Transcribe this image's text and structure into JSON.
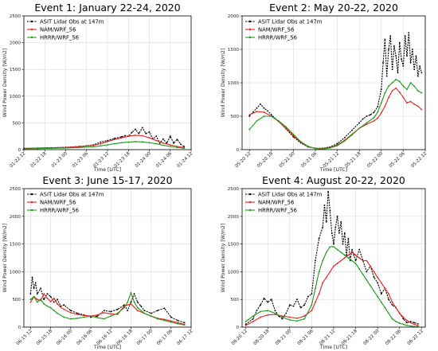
{
  "figure": {
    "background": "#ffffff"
  },
  "chart_data": [
    {
      "type": "line",
      "title": "Event 1: January 22-24, 2020",
      "xlabel": "Time [UTC]",
      "ylabel": "Wind Power Density [W/m2]",
      "ylim": [
        0,
        2500
      ],
      "yticks": [
        0,
        500,
        1000,
        1500,
        2000,
        2500
      ],
      "xlim": [
        0,
        48
      ],
      "xticks": [
        0,
        6,
        12,
        18,
        24,
        30,
        36,
        42,
        48
      ],
      "xtick_labels": [
        "01-22 12",
        "01-22 18",
        "01-23 00",
        "01-23 06",
        "01-23 12",
        "01-23 18",
        "01-24 00",
        "01-24 06",
        "01-24 12"
      ],
      "grid": true,
      "legend": "top-left",
      "series": [
        {
          "name": "ASIT Lidar Obs at 147m",
          "color": "#000000",
          "marker": "dot",
          "x": [
            0,
            4,
            8,
            12,
            16,
            20,
            22,
            24,
            26,
            28,
            29,
            30,
            31,
            32,
            33,
            34,
            35,
            36,
            37,
            38,
            39,
            40,
            41,
            42,
            43,
            44,
            45,
            46
          ],
          "y": [
            20,
            30,
            35,
            45,
            60,
            90,
            140,
            170,
            210,
            240,
            260,
            250,
            320,
            380,
            300,
            410,
            300,
            330,
            200,
            250,
            120,
            200,
            120,
            250,
            120,
            190,
            100,
            60
          ]
        },
        {
          "name": "NAM/WRF_56",
          "color": "#e8221e",
          "marker": "dot",
          "x": [
            0,
            4,
            8,
            12,
            16,
            20,
            22,
            24,
            26,
            28,
            30,
            32,
            34,
            36,
            38,
            40,
            42,
            44,
            46
          ],
          "y": [
            25,
            30,
            35,
            40,
            55,
            80,
            110,
            150,
            190,
            220,
            250,
            270,
            260,
            220,
            170,
            120,
            90,
            60,
            40
          ]
        },
        {
          "name": "HRRR/WRF_56",
          "color": "#1a9a1a",
          "marker": "dot",
          "x": [
            0,
            4,
            8,
            12,
            16,
            20,
            22,
            24,
            26,
            28,
            30,
            32,
            34,
            36,
            38,
            40,
            42,
            44,
            46
          ],
          "y": [
            15,
            20,
            25,
            30,
            40,
            55,
            70,
            90,
            110,
            130,
            140,
            150,
            145,
            130,
            110,
            80,
            60,
            40,
            25
          ]
        }
      ]
    },
    {
      "type": "line",
      "title": "Event 2: May 20-22, 2020",
      "xlabel": "Time [UTC]",
      "ylabel": "Wind Power Density [W/m2]",
      "ylim": [
        0,
        2000
      ],
      "yticks": [
        0,
        500,
        1000,
        1500,
        2000
      ],
      "xlim": [
        -2,
        48
      ],
      "xticks": [
        0,
        6,
        12,
        18,
        24,
        30,
        36,
        42,
        48
      ],
      "xtick_labels": [
        "05-20 12",
        "05-20 18",
        "05-21 00",
        "05-21 06",
        "05-21 12",
        "05-21 18",
        "05-22 00",
        "05-22 06",
        "05-22 12"
      ],
      "grid": true,
      "legend": "top-left",
      "series": [
        {
          "name": "ASIT Lidar Obs at 147m",
          "color": "#000000",
          "marker": "dot",
          "x": [
            0,
            1,
            2,
            3,
            4,
            5,
            6,
            8,
            10,
            12,
            14,
            16,
            18,
            20,
            22,
            24,
            26,
            28,
            30,
            31,
            32,
            33,
            34,
            35,
            36,
            36.5,
            37,
            37.5,
            38,
            38.5,
            39,
            39.5,
            40,
            40.5,
            41,
            41.5,
            42,
            42.5,
            43,
            43.5,
            44,
            44.5,
            45,
            45.5,
            46,
            46.5,
            47
          ],
          "y": [
            500,
            560,
            620,
            680,
            620,
            580,
            520,
            420,
            310,
            190,
            100,
            40,
            20,
            20,
            40,
            90,
            180,
            290,
            400,
            460,
            500,
            520,
            560,
            640,
            900,
            1300,
            1650,
            1100,
            1500,
            1700,
            1200,
            1550,
            1400,
            1150,
            1600,
            1350,
            1250,
            1700,
            1400,
            1750,
            1300,
            1500,
            1200,
            1400,
            1100,
            1250,
            1150
          ]
        },
        {
          "name": "NAM/WRF_56",
          "color": "#e8221e",
          "marker": "dot",
          "x": [
            0,
            2,
            4,
            6,
            8,
            10,
            12,
            14,
            16,
            18,
            20,
            22,
            24,
            26,
            28,
            30,
            32,
            34,
            35,
            36,
            37,
            38,
            39,
            40,
            41,
            42,
            43,
            44,
            45,
            46,
            47
          ],
          "y": [
            520,
            570,
            560,
            500,
            420,
            320,
            210,
            110,
            45,
            20,
            15,
            30,
            70,
            140,
            230,
            320,
            380,
            430,
            470,
            550,
            650,
            780,
            880,
            920,
            860,
            780,
            700,
            720,
            680,
            650,
            600
          ]
        },
        {
          "name": "HRRR/WRF_56",
          "color": "#1a9a1a",
          "marker": "dot",
          "x": [
            0,
            2,
            4,
            6,
            8,
            10,
            12,
            14,
            16,
            18,
            20,
            22,
            24,
            26,
            28,
            30,
            32,
            34,
            35,
            36,
            37,
            38,
            39,
            40,
            41,
            42,
            43,
            44,
            45,
            46,
            47
          ],
          "y": [
            300,
            430,
            500,
            500,
            430,
            340,
            230,
            120,
            50,
            15,
            10,
            25,
            60,
            130,
            220,
            320,
            400,
            480,
            560,
            700,
            850,
            950,
            1000,
            1050,
            1020,
            950,
            900,
            1000,
            950,
            880,
            850
          ]
        }
      ]
    },
    {
      "type": "line",
      "title": "Event 3: June 15-17, 2020",
      "xlabel": "Time [UTC]",
      "ylabel": "Wind Power Density [W/m2]",
      "ylim": [
        0,
        2500
      ],
      "yticks": [
        0,
        500,
        1000,
        1500,
        2000,
        2500
      ],
      "xlim": [
        -2,
        48
      ],
      "xticks": [
        0,
        6,
        12,
        18,
        24,
        30,
        36,
        42,
        48
      ],
      "xtick_labels": [
        "06-15 12",
        "06-15 18",
        "06-16 00",
        "06-16 06",
        "06-16 12",
        "06-16 18",
        "06-17 00",
        "06-17 06",
        "06-17 12"
      ],
      "grid": true,
      "legend": "top-left",
      "series": [
        {
          "name": "ASIT Lidar Obs at 147m",
          "color": "#000000",
          "marker": "dot",
          "x": [
            0,
            0.5,
            1,
            1.5,
            2,
            3,
            4,
            5,
            6,
            7,
            8,
            9,
            10,
            12,
            14,
            16,
            18,
            20,
            22,
            24,
            26,
            28,
            29,
            30,
            31,
            32,
            33,
            34,
            36,
            38,
            40,
            42,
            44,
            46
          ],
          "y": [
            600,
            900,
            700,
            800,
            600,
            700,
            500,
            600,
            550,
            450,
            500,
            380,
            400,
            300,
            250,
            220,
            180,
            200,
            300,
            280,
            320,
            400,
            300,
            450,
            600,
            450,
            380,
            300,
            250,
            300,
            340,
            180,
            120,
            80
          ]
        },
        {
          "name": "NAM/WRF_56",
          "color": "#e8221e",
          "marker": "dot",
          "x": [
            0,
            1,
            2,
            3,
            4,
            5,
            6,
            7,
            8,
            9,
            10,
            12,
            14,
            16,
            18,
            20,
            22,
            24,
            26,
            28,
            30,
            32,
            34,
            36,
            38,
            40,
            42,
            44,
            46
          ],
          "y": [
            450,
            550,
            500,
            480,
            600,
            520,
            460,
            520,
            420,
            360,
            320,
            260,
            230,
            210,
            200,
            220,
            260,
            240,
            230,
            380,
            420,
            300,
            250,
            200,
            160,
            140,
            110,
            80,
            50
          ]
        },
        {
          "name": "HRRR/WRF_56",
          "color": "#1a9a1a",
          "marker": "dot",
          "x": [
            0,
            1,
            2,
            3,
            4,
            5,
            6,
            7,
            8,
            10,
            12,
            14,
            16,
            18,
            20,
            22,
            24,
            26,
            28,
            29,
            30,
            31,
            32,
            34,
            36,
            38,
            40,
            42,
            44,
            46
          ],
          "y": [
            500,
            550,
            450,
            500,
            420,
            380,
            350,
            300,
            250,
            180,
            150,
            160,
            180,
            200,
            170,
            150,
            200,
            250,
            350,
            450,
            620,
            450,
            350,
            250,
            200,
            150,
            120,
            90,
            60,
            40
          ]
        }
      ]
    },
    {
      "type": "line",
      "title": "Event 4: August 20-22, 2020",
      "xlabel": "Time [UTC]",
      "ylabel": "Wind Power Density [W/m2]",
      "ylim": [
        0,
        2500
      ],
      "yticks": [
        0,
        500,
        1000,
        1500,
        2000,
        2500
      ],
      "xlim": [
        -1,
        49
      ],
      "xticks": [
        0,
        6,
        12,
        18,
        24,
        30,
        36,
        42,
        48
      ],
      "xtick_labels": [
        "08-20 12",
        "08-20 18",
        "08-21 00",
        "08-21 06",
        "08-21 12",
        "08-21 18",
        "08-22 00",
        "08-22 06",
        "08-22 12"
      ],
      "grid": true,
      "legend": "top-left",
      "series": [
        {
          "name": "ASIT Lidar Obs at 147m",
          "color": "#000000",
          "marker": "dot",
          "x": [
            0,
            2,
            3,
            4,
            5,
            6,
            7,
            8,
            9,
            10,
            11,
            12,
            13,
            14,
            15,
            16,
            17,
            18,
            19,
            20,
            21,
            21.5,
            22,
            22.5,
            23,
            23.5,
            24,
            24.5,
            25,
            25.5,
            26,
            26.5,
            27,
            27.5,
            28,
            28.5,
            29,
            29.5,
            30,
            31,
            32,
            33,
            34,
            35,
            36,
            37,
            38,
            39,
            40,
            41,
            42,
            43,
            44,
            45,
            46,
            47
          ],
          "y": [
            50,
            150,
            300,
            400,
            520,
            450,
            500,
            300,
            200,
            150,
            250,
            400,
            380,
            500,
            350,
            400,
            550,
            600,
            1200,
            1600,
            1800,
            2200,
            1900,
            2450,
            2100,
            1700,
            1500,
            1800,
            2000,
            1700,
            1900,
            1500,
            1700,
            1300,
            1600,
            1200,
            1400,
            1300,
            1200,
            1400,
            1200,
            1000,
            1100,
            900,
            800,
            600,
            700,
            500,
            400,
            350,
            250,
            150,
            80,
            100,
            80,
            60
          ]
        },
        {
          "name": "NAM/WRF_56",
          "color": "#e8221e",
          "marker": "dot",
          "x": [
            0,
            2,
            4,
            6,
            8,
            10,
            12,
            14,
            16,
            18,
            19,
            20,
            21,
            22,
            23,
            24,
            25,
            26,
            27,
            28,
            29,
            30,
            31,
            32,
            33,
            34,
            35,
            36,
            37,
            38,
            39,
            40,
            41,
            42,
            43,
            44,
            45,
            46,
            47
          ],
          "y": [
            30,
            100,
            180,
            220,
            230,
            200,
            180,
            160,
            200,
            300,
            450,
            600,
            800,
            900,
            1000,
            1100,
            1150,
            1200,
            1250,
            1300,
            1350,
            1300,
            1250,
            1200,
            1200,
            1100,
            1000,
            900,
            800,
            700,
            600,
            450,
            350,
            250,
            180,
            120,
            80,
            50,
            30
          ]
        },
        {
          "name": "HRRR/WRF_56",
          "color": "#1a9a1a",
          "marker": "dot",
          "x": [
            0,
            2,
            4,
            6,
            8,
            10,
            12,
            14,
            16,
            18,
            19,
            20,
            21,
            22,
            23,
            24,
            25,
            26,
            27,
            28,
            29,
            30,
            31,
            32,
            33,
            34,
            35,
            36,
            37,
            38,
            39,
            40,
            41,
            42,
            43,
            44,
            45,
            46,
            47
          ],
          "y": [
            100,
            200,
            280,
            300,
            250,
            180,
            130,
            110,
            150,
            400,
            700,
            1000,
            1200,
            1350,
            1450,
            1450,
            1400,
            1350,
            1300,
            1250,
            1200,
            1150,
            1050,
            950,
            850,
            750,
            650,
            550,
            450,
            350,
            250,
            150,
            100,
            70,
            50,
            30,
            20,
            10,
            10
          ]
        }
      ]
    }
  ]
}
